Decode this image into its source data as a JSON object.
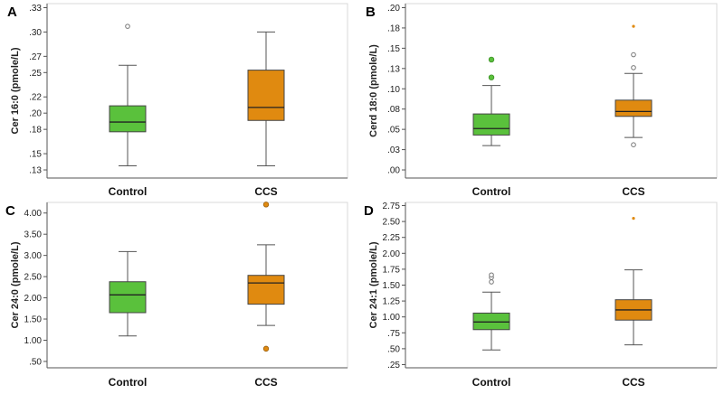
{
  "chart_data": [
    {
      "panel": "A",
      "type": "box",
      "ylabel": "Cer 16:0  (pmole/L)",
      "ticks": [
        ".13",
        ".15",
        ".18",
        ".20",
        ".22",
        ".25",
        ".27",
        ".30",
        ".33"
      ],
      "tick_values": [
        0.13,
        0.15,
        0.18,
        0.2,
        0.22,
        0.25,
        0.27,
        0.3,
        0.33
      ],
      "ylim": [
        0.12,
        0.335
      ],
      "categories": [
        "Control",
        "CCS"
      ],
      "boxes": [
        {
          "name": "Control",
          "color": "#5ac13c",
          "whisker_low": 0.135,
          "q1": 0.177,
          "median": 0.189,
          "q3": 0.209,
          "whisker_high": 0.259,
          "outliers": [
            {
              "v": 0.307,
              "style": "open"
            }
          ]
        },
        {
          "name": "CCS",
          "color": "#e08a10",
          "whisker_low": 0.135,
          "q1": 0.191,
          "median": 0.207,
          "q3": 0.253,
          "whisker_high": 0.3,
          "outliers": []
        }
      ]
    },
    {
      "panel": "B",
      "type": "box",
      "ylabel": "Cerd 18:0  (pmole/L)",
      "ticks": [
        ".00",
        ".03",
        ".05",
        ".08",
        ".10",
        ".13",
        ".15",
        ".18",
        ".20"
      ],
      "tick_values": [
        0.0,
        0.025,
        0.05,
        0.075,
        0.1,
        0.125,
        0.15,
        0.175,
        0.2
      ],
      "ylim": [
        -0.01,
        0.205
      ],
      "categories": [
        "Control",
        "CCS"
      ],
      "boxes": [
        {
          "name": "Control",
          "color": "#5ac13c",
          "whisker_low": 0.03,
          "q1": 0.043,
          "median": 0.051,
          "q3": 0.069,
          "whisker_high": 0.104,
          "outliers": [
            {
              "v": 0.114,
              "style": "filled"
            },
            {
              "v": 0.136,
              "style": "filled"
            }
          ]
        },
        {
          "name": "CCS",
          "color": "#e08a10",
          "whisker_low": 0.04,
          "q1": 0.066,
          "median": 0.072,
          "q3": 0.086,
          "whisker_high": 0.119,
          "outliers": [
            {
              "v": 0.031,
              "style": "open"
            },
            {
              "v": 0.126,
              "style": "open"
            },
            {
              "v": 0.142,
              "style": "open"
            },
            {
              "v": 0.177,
              "style": "star"
            }
          ]
        }
      ]
    },
    {
      "panel": "C",
      "type": "box",
      "ylabel": "Cer 24:0  (pmole/L)",
      "ticks": [
        ".50",
        "1.00",
        "1.50",
        "2.00",
        "2.50",
        "3.00",
        "3.50",
        "4.00"
      ],
      "tick_values": [
        0.5,
        1.0,
        1.5,
        2.0,
        2.5,
        3.0,
        3.5,
        4.0
      ],
      "ylim": [
        0.35,
        4.25
      ],
      "categories": [
        "Control",
        "CCS"
      ],
      "boxes": [
        {
          "name": "Control",
          "color": "#5ac13c",
          "whisker_low": 1.1,
          "q1": 1.65,
          "median": 2.07,
          "q3": 2.38,
          "whisker_high": 3.09,
          "outliers": []
        },
        {
          "name": "CCS",
          "color": "#e08a10",
          "whisker_low": 1.35,
          "q1": 1.85,
          "median": 2.35,
          "q3": 2.53,
          "whisker_high": 3.25,
          "outliers": [
            {
              "v": 0.8,
              "style": "filled"
            },
            {
              "v": 4.2,
              "style": "filled"
            }
          ]
        }
      ]
    },
    {
      "panel": "D",
      "type": "box",
      "ylabel": "Cer 24:1  (pmole/L)",
      "ticks": [
        ".25",
        ".50",
        ".75",
        "1.00",
        "1.25",
        "1.50",
        "1.75",
        "2.00",
        "2.25",
        "2.50",
        "2.75"
      ],
      "tick_values": [
        0.25,
        0.5,
        0.75,
        1.0,
        1.25,
        1.5,
        1.75,
        2.0,
        2.25,
        2.5,
        2.75
      ],
      "ylim": [
        0.2,
        2.8
      ],
      "categories": [
        "Control",
        "CCS"
      ],
      "boxes": [
        {
          "name": "Control",
          "color": "#5ac13c",
          "whisker_low": 0.48,
          "q1": 0.8,
          "median": 0.92,
          "q3": 1.06,
          "whisker_high": 1.39,
          "outliers": [
            {
              "v": 1.55,
              "style": "open"
            },
            {
              "v": 1.62,
              "style": "open"
            },
            {
              "v": 1.66,
              "style": "open"
            }
          ]
        },
        {
          "name": "CCS",
          "color": "#e08a10",
          "whisker_low": 0.56,
          "q1": 0.95,
          "median": 1.11,
          "q3": 1.27,
          "whisker_high": 1.74,
          "outliers": [
            {
              "v": 2.55,
              "style": "star"
            }
          ]
        }
      ]
    }
  ]
}
